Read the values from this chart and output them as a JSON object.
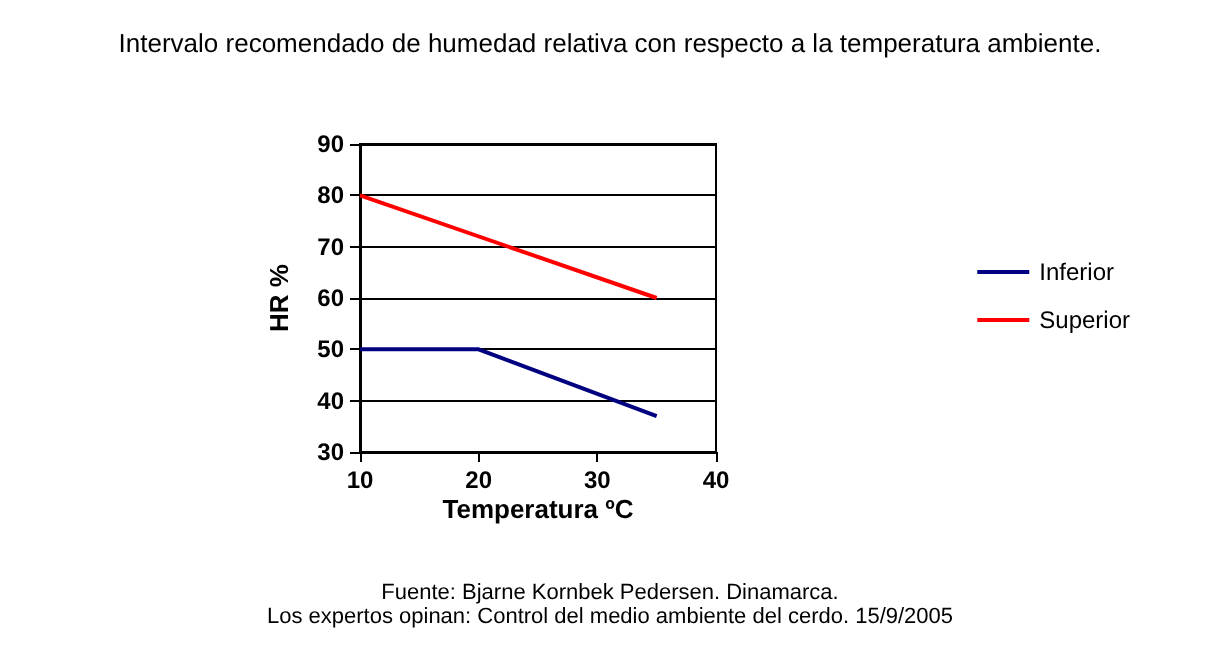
{
  "chart_data": {
    "type": "line",
    "title": "Intervalo recomendado de humedad relativa con respecto a la temperatura ambiente.",
    "xlabel": "Temperatura ºC",
    "ylabel": "HR %",
    "series": [
      {
        "name": "Inferior",
        "color": "#000080",
        "x": [
          10,
          20,
          35
        ],
        "values": [
          50,
          50,
          37
        ]
      },
      {
        "name": "Superior",
        "color": "#ff0000",
        "x": [
          10,
          35
        ],
        "values": [
          80,
          60
        ]
      }
    ],
    "xlim": [
      10,
      40
    ],
    "xticks": [
      10,
      20,
      30,
      40
    ],
    "ylim": [
      30,
      90
    ],
    "yticks": [
      30,
      40,
      50,
      60,
      70,
      80,
      90
    ],
    "grid": "y",
    "legend": "right",
    "marker": "none",
    "line_style": "solid",
    "annotations": [
      "Fuente: Bjarne Kornbek Pedersen. Dinamarca.",
      "Los expertos opinan: Control del medio ambiente del cerdo. 15/9/2005"
    ]
  }
}
